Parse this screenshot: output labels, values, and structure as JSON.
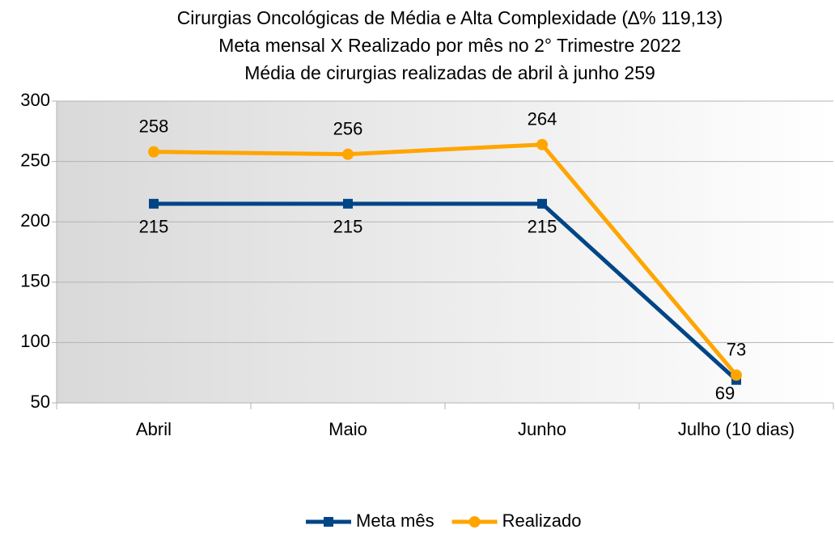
{
  "chart_data": {
    "type": "line",
    "title": "Cirurgias Oncológicas de Média e Alta Complexidade (∆% 119,13)",
    "subtitle": [
      "Meta mensal X Realizado por mês no 2° Trimestre 2022",
      "Média de cirurgias realizadas de abril à junho 259"
    ],
    "categories": [
      "Abril",
      "Maio",
      "Junho",
      "Julho (10 dias)"
    ],
    "series": [
      {
        "name": "Meta mês",
        "color": "#004586",
        "marker": "square",
        "values": [
          215,
          215,
          215,
          69
        ]
      },
      {
        "name": "Realizado",
        "color": "#ffa500",
        "marker": "circle",
        "values": [
          258,
          256,
          264,
          73
        ]
      }
    ],
    "ylim": [
      50,
      300
    ],
    "yticks": [
      50,
      100,
      150,
      200,
      250,
      300
    ],
    "grid": true,
    "legend": "bottom"
  }
}
